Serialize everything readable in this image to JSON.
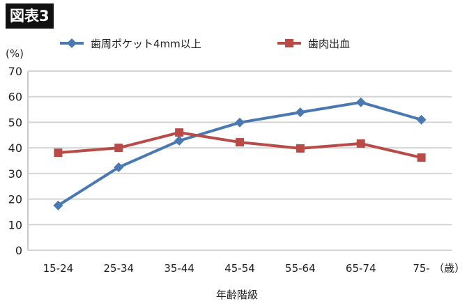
{
  "figure_label": "図表3",
  "chart_data": {
    "type": "line",
    "title": "",
    "xlabel": "年齢階級",
    "x_unit": "（歳）",
    "ylabel": "",
    "y_unit": "(%)",
    "ylim": [
      0,
      70
    ],
    "yticks": [
      0,
      10,
      20,
      30,
      40,
      50,
      60,
      70
    ],
    "grid": true,
    "legend_position": "top",
    "categories": [
      "15-24",
      "25-34",
      "35-44",
      "45-54",
      "55-64",
      "65-74",
      "75-"
    ],
    "series": [
      {
        "name": "歯周ポケット4mm以上",
        "color": "#4a78b0",
        "marker": "diamond",
        "values": [
          17.5,
          32.4,
          42.8,
          49.9,
          53.9,
          57.8,
          51.0
        ]
      },
      {
        "name": "歯肉出血",
        "color": "#b84a48",
        "marker": "square",
        "values": [
          38.1,
          40.0,
          46.0,
          42.2,
          39.8,
          41.7,
          36.2
        ]
      }
    ]
  }
}
